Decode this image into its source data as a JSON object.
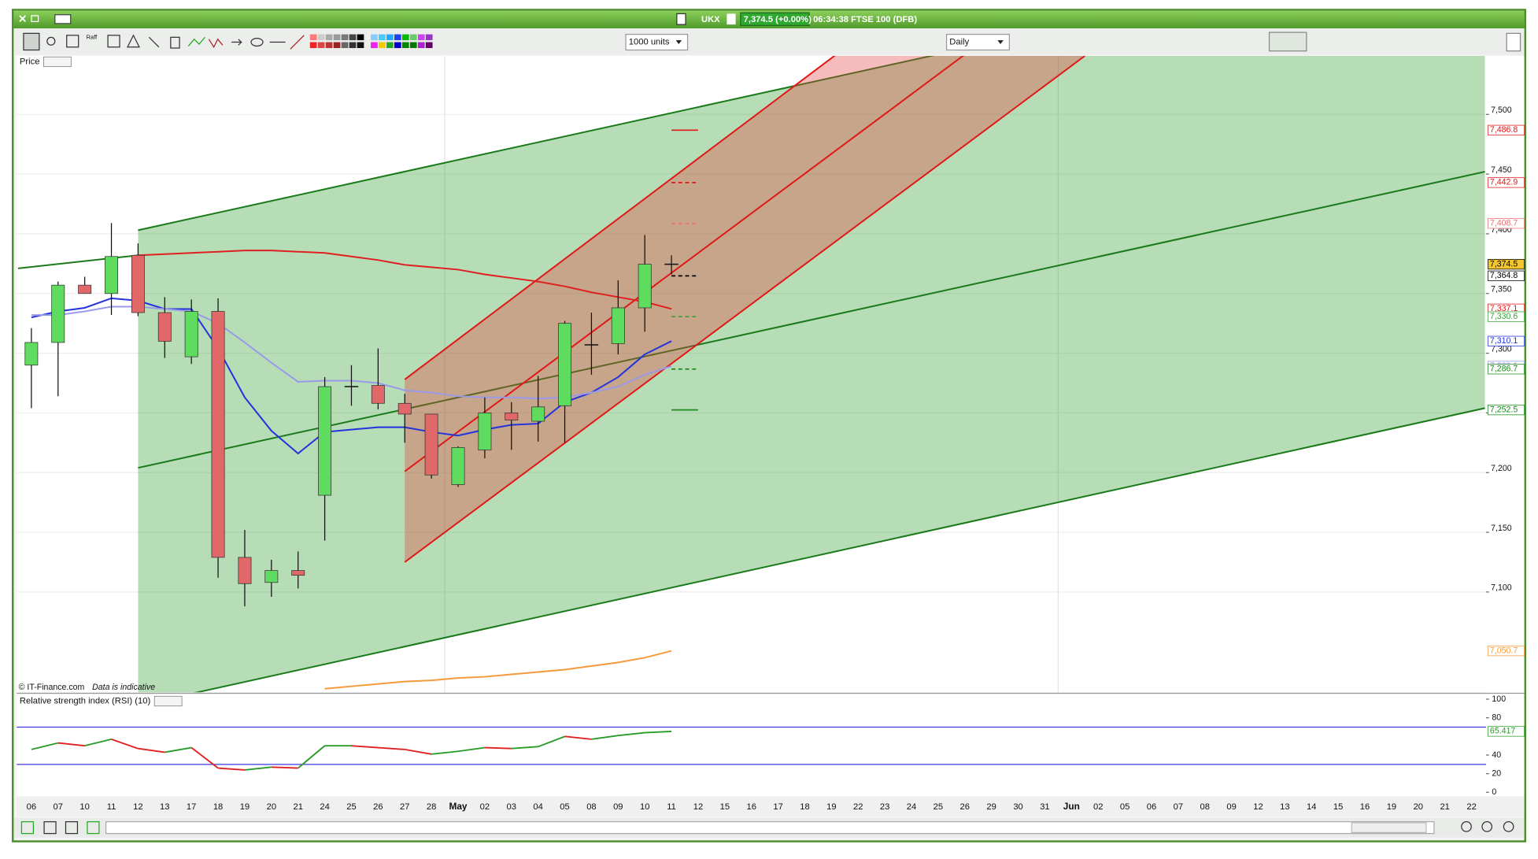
{
  "window": {
    "symbol": "UKX",
    "quote": "7,374.5 (+0.00%)",
    "session": "06:34:38 FTSE 100 (DFB)",
    "raff": "Raff",
    "units": "1000 units",
    "period": "Daily",
    "copyright": "© IT-Finance.com",
    "disclaimer": "Data is indicative"
  },
  "chart_data": [
    {
      "type": "candlestick",
      "title": "Price",
      "categories": [
        "06",
        "07",
        "10",
        "11",
        "12",
        "13",
        "17",
        "18",
        "19",
        "20",
        "21",
        "24",
        "25",
        "26",
        "27",
        "28",
        "May",
        "02",
        "03",
        "04",
        "05",
        "08",
        "09",
        "10",
        "11",
        "12",
        "15",
        "16",
        "17",
        "18",
        "19",
        "22",
        "23",
        "24",
        "25",
        "26",
        "29",
        "30",
        "31",
        "Jun",
        "02",
        "05",
        "06",
        "07",
        "08",
        "09",
        "12",
        "13",
        "14",
        "15",
        "16",
        "19",
        "20",
        "21",
        "22"
      ],
      "open": [
        7290,
        7309,
        7357,
        7350,
        7382,
        7334,
        7297,
        7335,
        7129,
        7108,
        7118,
        7181,
        7272,
        7273,
        7258,
        7249,
        7190,
        7219,
        7250,
        7243,
        7256,
        7307,
        7308,
        7338,
        7374.5,
        null,
        null,
        null,
        null,
        null,
        null,
        null,
        null,
        null,
        null,
        null,
        null,
        null,
        null,
        null,
        null,
        null,
        null,
        null,
        null,
        null,
        null,
        null,
        null,
        null,
        null,
        null,
        null,
        null,
        null
      ],
      "high": [
        7321,
        7360,
        7364,
        7409,
        7392,
        7347,
        7345,
        7346,
        7152,
        7127,
        7134,
        7280,
        7290,
        7304,
        7266,
        7249,
        7222,
        7263,
        7259,
        7281,
        7327,
        7334,
        7361,
        7399,
        7382,
        null,
        null,
        null,
        null,
        null,
        null,
        null,
        null,
        null,
        null,
        null,
        null,
        null,
        null,
        null,
        null,
        null,
        null,
        null,
        null,
        null,
        null,
        null,
        null,
        null,
        null,
        null,
        null,
        null,
        null
      ],
      "low": [
        7254,
        7264,
        7350,
        7332,
        7331,
        7296,
        7291,
        7112,
        7088,
        7096,
        7103,
        7143,
        7256,
        7253,
        7225,
        7195,
        7188,
        7212,
        7219,
        7226,
        7225,
        7282,
        7299,
        7318,
        7366,
        null,
        null,
        null,
        null,
        null,
        null,
        null,
        null,
        null,
        null,
        null,
        null,
        null,
        null,
        null,
        null,
        null,
        null,
        null,
        null,
        null,
        null,
        null,
        null,
        null,
        null,
        null,
        null,
        null,
        null
      ],
      "close": [
        7309,
        7357,
        7350,
        7381,
        7334,
        7310,
        7335,
        7129,
        7107,
        7118,
        7114,
        7272,
        7272,
        7258,
        7249,
        7198,
        7221,
        7250,
        7244,
        7255,
        7325,
        7307,
        7338,
        7374.5,
        7374.5,
        null,
        null,
        null,
        null,
        null,
        null,
        null,
        null,
        null,
        null,
        null,
        null,
        null,
        null,
        null,
        null,
        null,
        null,
        null,
        null,
        null,
        null,
        null,
        null,
        null,
        null,
        null,
        null,
        null,
        null
      ],
      "up_color": "#5fdc5f",
      "down_color": "#e06868",
      "lines": [
        {
          "color": "#2233dd",
          "values": [
            7330,
            7335,
            7338,
            7346,
            7344,
            7337,
            7337,
            7304,
            7263,
            7235,
            7216,
            7234,
            7236,
            7238,
            7238,
            7234,
            7231,
            7236,
            7240,
            7241,
            7259,
            7267,
            7280,
            7299,
            7310.1,
            null,
            null,
            null,
            null,
            null,
            null,
            null,
            null,
            null,
            null,
            null,
            null,
            null,
            null,
            null,
            null,
            null,
            null,
            null,
            null,
            null,
            null,
            null,
            null,
            null,
            null,
            null,
            null,
            null,
            null
          ]
        },
        {
          "color": "#9a9ae8",
          "values": [
            7332,
            7332,
            7335,
            7339,
            7339,
            7337,
            7335,
            7325,
            7309,
            7292,
            7276,
            7277,
            7277,
            7275,
            7269,
            7267,
            7264,
            7263,
            7263,
            7262,
            7263,
            7267,
            7272,
            7282,
            7289.1,
            null,
            null,
            null,
            null,
            null,
            null,
            null,
            null,
            null,
            null,
            null,
            null,
            null,
            null,
            null,
            null,
            null,
            null,
            null,
            null,
            null,
            null,
            null,
            null,
            null,
            null,
            null,
            null,
            null,
            null
          ]
        },
        {
          "color": "#e02020",
          "values": [
            null,
            null,
            null,
            null,
            7382,
            7383,
            7384,
            7385,
            7386,
            7386,
            7385,
            7384,
            7381,
            7378,
            7374,
            7372,
            7370,
            7366,
            7363,
            7360,
            7356,
            7351,
            7347,
            7343,
            7337.1,
            null,
            null,
            null,
            null,
            null,
            null,
            null,
            null,
            null,
            null,
            null,
            null,
            null,
            null,
            null,
            null,
            null,
            null,
            null,
            null,
            null,
            null,
            null,
            null,
            null,
            null,
            null,
            null,
            null,
            null
          ]
        },
        {
          "color": "#f59a3a",
          "values": [
            null,
            null,
            null,
            null,
            null,
            null,
            null,
            null,
            null,
            null,
            null,
            7019,
            7021,
            7023,
            7025,
            7026,
            7028,
            7029,
            7031,
            7033,
            7035,
            7038,
            7041,
            7045,
            7050.7,
            null,
            null,
            null,
            null,
            null,
            null,
            null,
            null,
            null,
            null,
            null,
            null,
            null,
            null,
            null,
            null,
            null,
            null,
            null,
            null,
            null,
            null,
            null,
            null,
            null,
            null,
            null,
            null,
            null,
            null
          ]
        }
      ],
      "channels": [
        {
          "color": "#1a7a1a",
          "fill": "#2e9e2e",
          "x": [
            4,
            54.5
          ],
          "lines": [
            [
              7403,
              7651
            ],
            [
              7204,
              7452
            ],
            [
              7005,
              7254
            ]
          ]
        },
        {
          "color": "#1a7a1a",
          "x": [
            -0.5,
            4
          ],
          "lines": [
            [
              7371,
              7382
            ]
          ]
        },
        {
          "color": "#e01818",
          "fill": "#e63c3c",
          "x": [
            14,
            39.5
          ],
          "lines": [
            [
              7278,
              7707
            ],
            [
              7201,
              7625
            ],
            [
              7125,
              7549
            ]
          ]
        }
      ],
      "price_levels": [
        {
          "value": 7486.8,
          "label": "7,486.8",
          "color": "#e01818",
          "style": "solid"
        },
        {
          "value": 7442.9,
          "label": "7,442.9",
          "color": "#e01818",
          "style": "dashed"
        },
        {
          "value": 7408.7,
          "label": "7,408.7",
          "color": "#f07070",
          "style": "dashed"
        },
        {
          "value": 7374.5,
          "label": "7,374.5",
          "color": "#000000",
          "background": "#f2c62c",
          "style": "none"
        },
        {
          "value": 7364.8,
          "label": "7,364.8",
          "color": "#000000",
          "style": "dashed"
        },
        {
          "value": 7337.1,
          "label": "7,337.1",
          "color": "#e01818",
          "style": "none"
        },
        {
          "value": 7330.6,
          "label": "7,330.6",
          "color": "#3aa03a",
          "style": "dashed"
        },
        {
          "value": 7310.1,
          "label": "7,310.1",
          "color": "#2233dd",
          "style": "none"
        },
        {
          "value": 7289.1,
          "label": "7,289.1",
          "color": "#9a9ae8",
          "style": "none"
        },
        {
          "value": 7286.7,
          "label": "7,286.7",
          "color": "#1a8a1a",
          "style": "dashed"
        },
        {
          "value": 7252.5,
          "label": "7,252.5",
          "color": "#1a8a1a",
          "style": "solid"
        },
        {
          "value": 7050.7,
          "label": "7,050.7",
          "color": "#f59a3a",
          "style": "none"
        }
      ],
      "ylim": [
        7016,
        7549
      ],
      "yticks": [
        {
          "value": 7100,
          "label": "7,100"
        },
        {
          "value": 7150,
          "label": "7,150"
        },
        {
          "value": 7200,
          "label": "7,200"
        },
        {
          "value": 7250,
          "label": "7,250"
        },
        {
          "value": 7300,
          "label": "7,300"
        },
        {
          "value": 7350,
          "label": "7,350"
        },
        {
          "value": 7400,
          "label": "7,400"
        },
        {
          "value": 7450,
          "label": "7,450"
        },
        {
          "value": 7500,
          "label": "7,500"
        }
      ],
      "grid": true
    },
    {
      "type": "line",
      "title": "Relative strength index (RSI) (10)",
      "values": [
        46,
        53,
        50,
        57,
        47,
        43,
        48,
        26,
        24,
        27,
        26,
        50,
        50,
        48,
        46,
        41,
        44,
        48,
        47,
        49,
        60,
        57,
        61,
        64,
        65.417,
        null,
        null,
        null,
        null,
        null,
        null,
        null,
        null,
        null,
        null,
        null,
        null,
        null,
        null,
        null,
        null,
        null,
        null,
        null,
        null,
        null,
        null,
        null,
        null,
        null,
        null,
        null,
        null,
        null,
        null
      ],
      "up_color": "#2a9a2a",
      "down_color": "#e02020",
      "levels": [
        30,
        70
      ],
      "level_color": "#3a3ae0",
      "ylim": [
        0,
        100
      ],
      "yticks": [
        0,
        20,
        40,
        80,
        100
      ]
    }
  ]
}
